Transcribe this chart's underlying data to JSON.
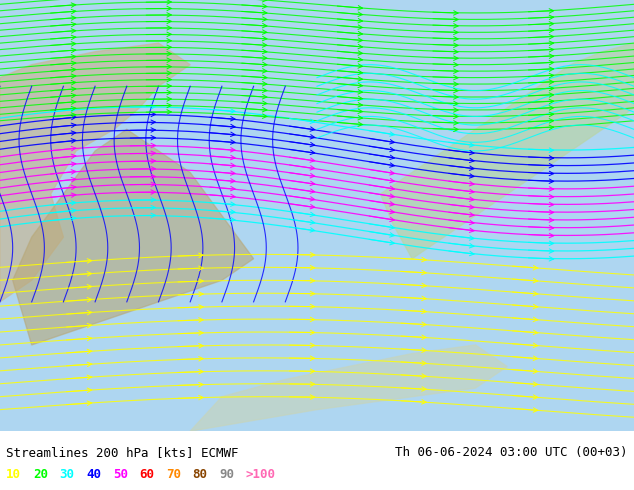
{
  "title_left": "Streamlines 200 hPa [kts] ECMWF",
  "title_right": "Th 06-06-2024 03:00 UTC (00+03)",
  "legend_values": [
    "10",
    "20",
    "30",
    "40",
    "50",
    "60",
    "70",
    "80",
    "90",
    ">100"
  ],
  "legend_colors": [
    "#ffff00",
    "#00ff00",
    "#00ffff",
    "#0000ff",
    "#ff00ff",
    "#ff0000",
    "#ff8800",
    "#884400",
    "#888888",
    "#ff69b4"
  ],
  "bg_color": "#87CEEB",
  "map_bg": "#e8f4e8",
  "bottom_bar_color": "#ffffff",
  "title_color": "#000000",
  "fig_width": 6.34,
  "fig_height": 4.9,
  "dpi": 100
}
